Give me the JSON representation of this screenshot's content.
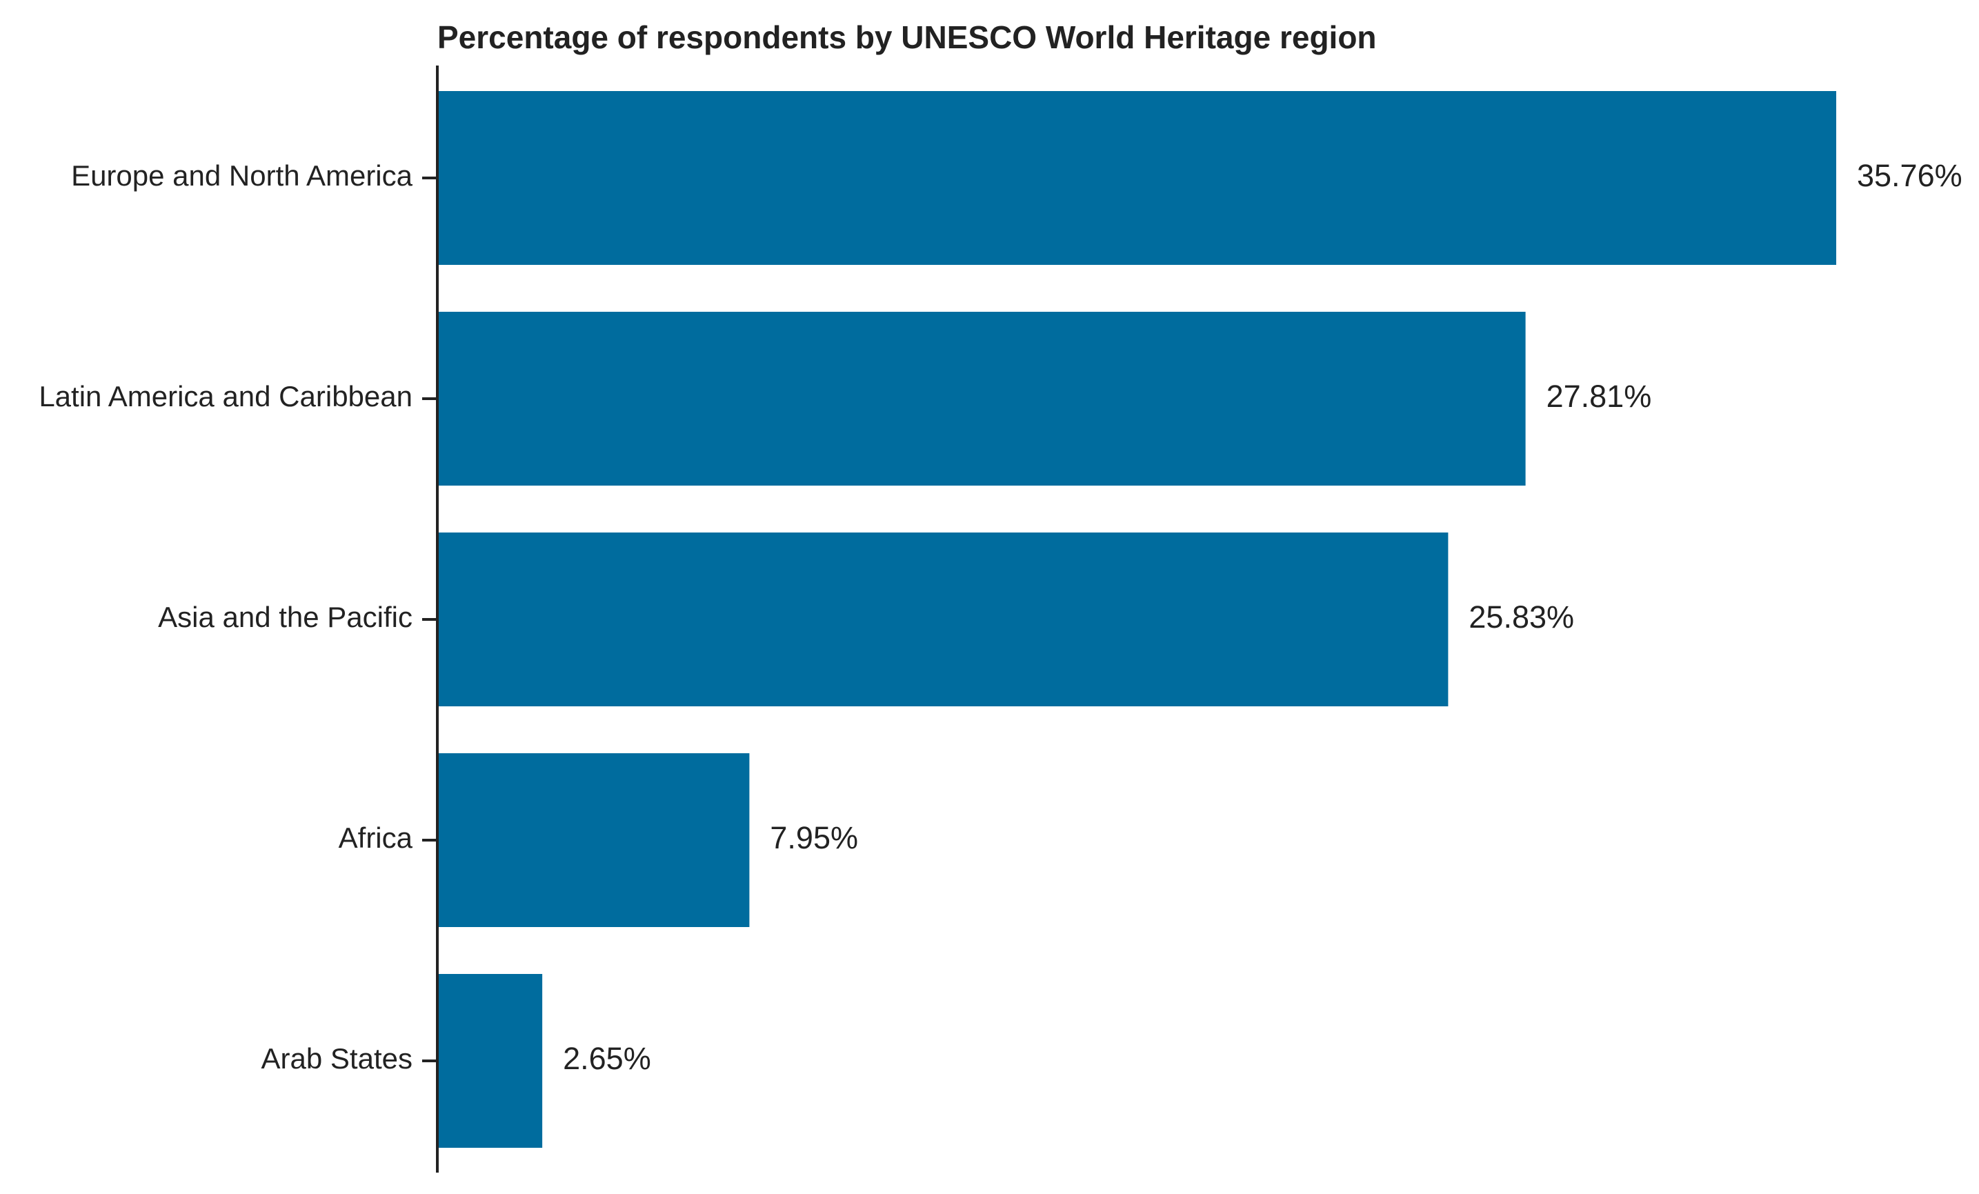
{
  "chart_data": {
    "type": "bar",
    "orientation": "horizontal",
    "title": "Percentage of respondents by UNESCO World Heritage region",
    "xlabel": "",
    "ylabel": "",
    "categories": [
      "Europe and North America",
      "Latin America and Caribbean",
      "Asia and the Pacific",
      "Africa",
      "Arab States"
    ],
    "values": [
      35.76,
      27.81,
      25.83,
      7.95,
      2.65
    ],
    "value_labels": [
      "35.76%",
      "27.81%",
      "25.83%",
      "7.95%",
      "2.65%"
    ],
    "xlim": [
      0,
      35.76
    ],
    "grid": false,
    "legend": "none",
    "bar_color": "#006C9E"
  }
}
